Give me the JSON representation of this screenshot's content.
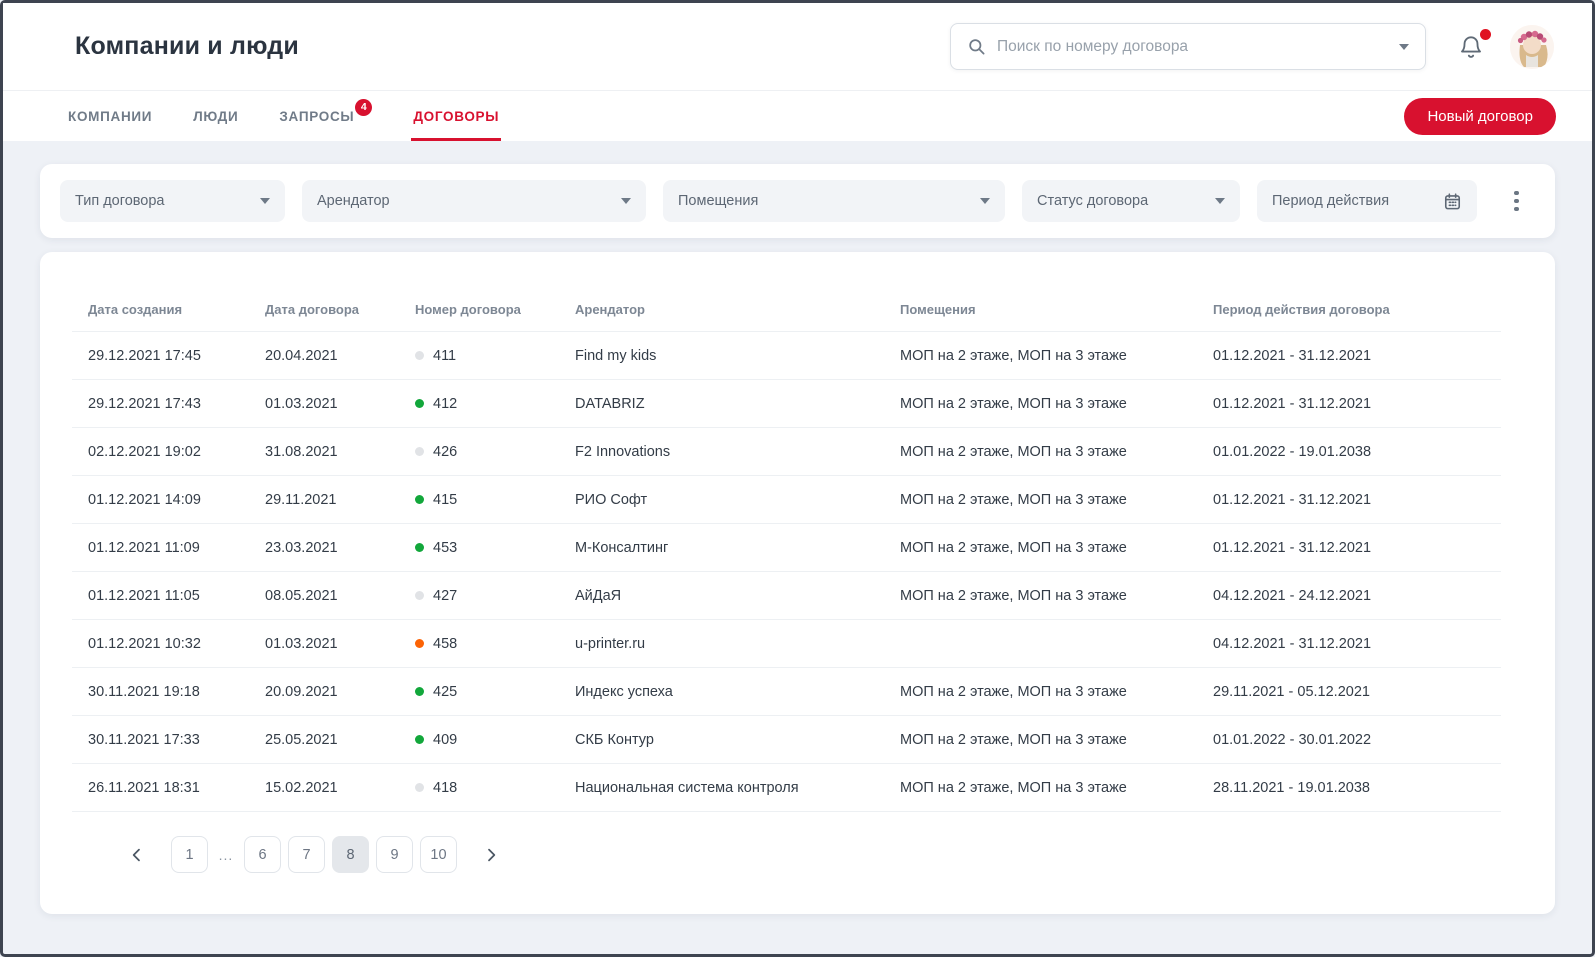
{
  "app": {
    "title": "Компании и люди"
  },
  "header": {
    "search_placeholder": "Поиск по номеру договора",
    "notifications_unread": true
  },
  "tabs": [
    {
      "label": "КОМПАНИИ",
      "active": false
    },
    {
      "label": "ЛЮДИ",
      "active": false
    },
    {
      "label": "ЗАПРОСЫ",
      "badge": "4",
      "active": false
    },
    {
      "label": "ДОГОВОРЫ",
      "active": true
    }
  ],
  "actions": {
    "new_contract": "Новый договор"
  },
  "filters": [
    {
      "label": "Тип договора",
      "control": "select"
    },
    {
      "label": "Арендатор",
      "control": "select"
    },
    {
      "label": "Помещения",
      "control": "select"
    },
    {
      "label": "Статус договора",
      "control": "select"
    },
    {
      "label": "Период действия",
      "control": "date-range"
    }
  ],
  "table": {
    "columns": [
      "Дата создания",
      "Дата договора",
      "Номер договора",
      "Арендатор",
      "Помещения",
      "Период действия договора"
    ],
    "rows": [
      {
        "created": "29.12.2021 17:45",
        "contract_date": "20.04.2021",
        "number": "411",
        "status": "gray",
        "tenant": "Find my kids",
        "premises": "МОП на 2 этаже, МОП на 3 этаже",
        "period": "01.12.2021 - 31.12.2021"
      },
      {
        "created": "29.12.2021 17:43",
        "contract_date": "01.03.2021",
        "number": "412",
        "status": "green",
        "tenant": "DATABRIZ",
        "premises": "МОП на 2 этаже, МОП на 3 этаже",
        "period": "01.12.2021 - 31.12.2021"
      },
      {
        "created": "02.12.2021 19:02",
        "contract_date": "31.08.2021",
        "number": "426",
        "status": "gray",
        "tenant": "F2 Innovations",
        "premises": "МОП на 2 этаже, МОП на 3 этаже",
        "period": "01.01.2022 - 19.01.2038"
      },
      {
        "created": "01.12.2021 14:09",
        "contract_date": "29.11.2021",
        "number": "415",
        "status": "green",
        "tenant": "РИО Софт",
        "premises": "МОП на 2 этаже, МОП на 3 этаже",
        "period": "01.12.2021 - 31.12.2021"
      },
      {
        "created": "01.12.2021 11:09",
        "contract_date": "23.03.2021",
        "number": "453",
        "status": "green",
        "tenant": "М-Консалтинг",
        "premises": "МОП на 2 этаже, МОП на 3 этаже",
        "period": "01.12.2021 - 31.12.2021"
      },
      {
        "created": "01.12.2021 11:05",
        "contract_date": "08.05.2021",
        "number": "427",
        "status": "gray",
        "tenant": "АйДаЯ",
        "premises": "МОП на 2 этаже, МОП на 3 этаже",
        "period": "04.12.2021 - 24.12.2021"
      },
      {
        "created": "01.12.2021 10:32",
        "contract_date": "01.03.2021",
        "number": "458",
        "status": "orange",
        "tenant": "u-printer.ru",
        "premises": "",
        "period": "04.12.2021 - 31.12.2021"
      },
      {
        "created": "30.11.2021 19:18",
        "contract_date": "20.09.2021",
        "number": "425",
        "status": "green",
        "tenant": "Индекс успеха",
        "premises": "МОП на 2 этаже, МОП на 3 этаже",
        "period": "29.11.2021 - 05.12.2021"
      },
      {
        "created": "30.11.2021 17:33",
        "contract_date": "25.05.2021",
        "number": "409",
        "status": "green",
        "tenant": "СКБ Контур",
        "premises": "МОП на 2 этаже, МОП на 3 этаже",
        "period": "01.01.2022 - 30.01.2022"
      },
      {
        "created": "26.11.2021 18:31",
        "contract_date": "15.02.2021",
        "number": "418",
        "status": "gray",
        "tenant": "Национальная система контроля",
        "premises": "МОП на 2 этаже, МОП на 3 этаже",
        "period": "28.11.2021 - 19.01.2038"
      }
    ]
  },
  "pagination": {
    "pages": [
      "1",
      "...",
      "6",
      "7",
      "8",
      "9",
      "10"
    ],
    "current": "8"
  },
  "status_colors": {
    "gray": "#e1e3e6",
    "green": "#12a73b",
    "orange": "#fc6305"
  },
  "colors": {
    "accent_red": "#d8112f",
    "notification_dot": "#e01120"
  }
}
